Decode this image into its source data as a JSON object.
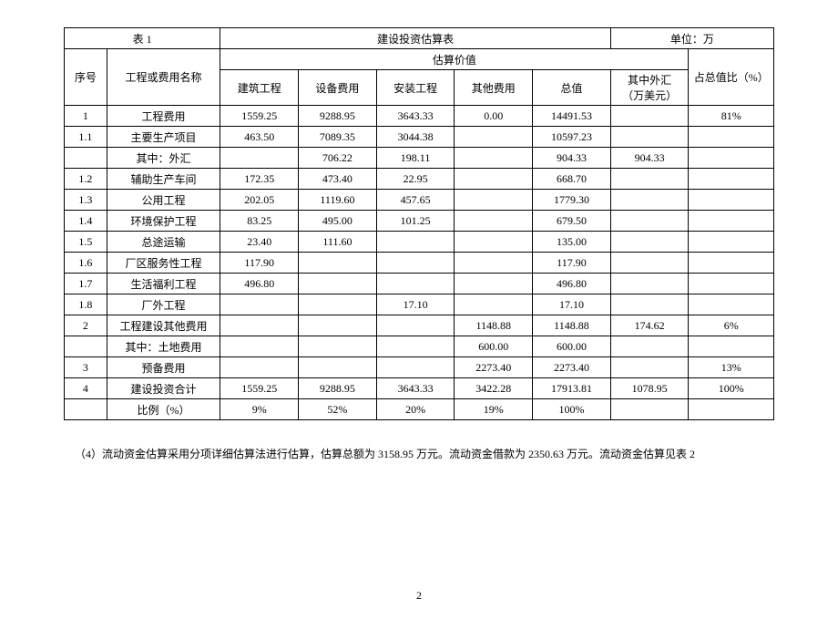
{
  "table": {
    "title_left": "表 1",
    "title_center": "建设投资估算表",
    "title_right": "单位：万",
    "header": {
      "seq": "序号",
      "name": "工程或费用名称",
      "estimate": "估算价值",
      "ratio": "占总值比（%）",
      "sub": {
        "c1": "建筑工程",
        "c2": "设备费用",
        "c3": "安装工程",
        "c4": "其他费用",
        "c5": "总值",
        "c6a": "其中外汇",
        "c6b": "（万美元）"
      }
    },
    "rows": [
      {
        "seq": "1",
        "name": "工程费用",
        "c1": "1559.25",
        "c2": "9288.95",
        "c3": "3643.33",
        "c4": "0.00",
        "c5": "14491.53",
        "c6": "",
        "ratio": "81%"
      },
      {
        "seq": "1.1",
        "name": "主要生产项目",
        "c1": "463.50",
        "c2": "7089.35",
        "c3": "3044.38",
        "c4": "",
        "c5": "10597.23",
        "c6": "",
        "ratio": ""
      },
      {
        "seq": "",
        "name": "其中：外汇",
        "c1": "",
        "c2": "706.22",
        "c3": "198.11",
        "c4": "",
        "c5": "904.33",
        "c6": "904.33",
        "ratio": ""
      },
      {
        "seq": "1.2",
        "name": "辅助生产车间",
        "c1": "172.35",
        "c2": "473.40",
        "c3": "22.95",
        "c4": "",
        "c5": "668.70",
        "c6": "",
        "ratio": ""
      },
      {
        "seq": "1.3",
        "name": "公用工程",
        "c1": "202.05",
        "c2": "1119.60",
        "c3": "457.65",
        "c4": "",
        "c5": "1779.30",
        "c6": "",
        "ratio": ""
      },
      {
        "seq": "1.4",
        "name": "环境保护工程",
        "c1": "83.25",
        "c2": "495.00",
        "c3": "101.25",
        "c4": "",
        "c5": "679.50",
        "c6": "",
        "ratio": ""
      },
      {
        "seq": "1.5",
        "name": "总途运输",
        "c1": "23.40",
        "c2": "111.60",
        "c3": "",
        "c4": "",
        "c5": "135.00",
        "c6": "",
        "ratio": ""
      },
      {
        "seq": "1.6",
        "name": "厂区服务性工程",
        "c1": "117.90",
        "c2": "",
        "c3": "",
        "c4": "",
        "c5": "117.90",
        "c6": "",
        "ratio": ""
      },
      {
        "seq": "1.7",
        "name": "生活福利工程",
        "c1": "496.80",
        "c2": "",
        "c3": "",
        "c4": "",
        "c5": "496.80",
        "c6": "",
        "ratio": ""
      },
      {
        "seq": "1.8",
        "name": "厂外工程",
        "c1": "",
        "c2": "",
        "c3": "17.10",
        "c4": "",
        "c5": "17.10",
        "c6": "",
        "ratio": ""
      },
      {
        "seq": "2",
        "name": "工程建设其他费用",
        "c1": "",
        "c2": "",
        "c3": "",
        "c4": "1148.88",
        "c5": "1148.88",
        "c6": "174.62",
        "ratio": "6%"
      },
      {
        "seq": "",
        "name": "其中：土地费用",
        "c1": "",
        "c2": "",
        "c3": "",
        "c4": "600.00",
        "c5": "600.00",
        "c6": "",
        "ratio": ""
      },
      {
        "seq": "3",
        "name": "预备费用",
        "c1": "",
        "c2": "",
        "c3": "",
        "c4": "2273.40",
        "c5": "2273.40",
        "c6": "",
        "ratio": "13%"
      },
      {
        "seq": "4",
        "name": "建设投资合计",
        "c1": "1559.25",
        "c2": "9288.95",
        "c3": "3643.33",
        "c4": "3422.28",
        "c5": "17913.81",
        "c6": "1078.95",
        "ratio": "100%"
      },
      {
        "seq": "",
        "name": "比例（%）",
        "c1": "9%",
        "c2": "52%",
        "c3": "20%",
        "c4": "19%",
        "c5": "100%",
        "c6": "",
        "ratio": ""
      }
    ]
  },
  "note": "（4）流动资金估算采用分项详细估算法进行估算，估算总额为 3158.95 万元。流动资金借款为 2350.63 万元。流动资金估算见表 2",
  "page": "2"
}
